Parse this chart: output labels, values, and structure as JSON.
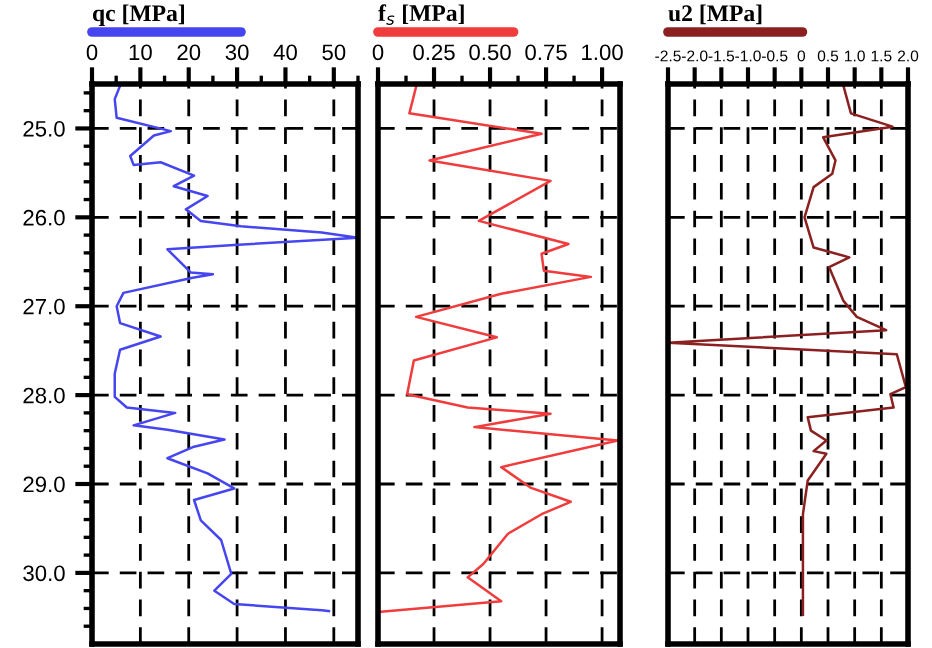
{
  "chart_data": [
    {
      "type": "line",
      "legend": "top",
      "grid": true,
      "line_style": "solid",
      "xlim": [
        0,
        55
      ],
      "ylim": [
        30.8,
        24.5
      ],
      "xticks": [
        0,
        {
          "value": 5,
          "label": null
        },
        10,
        {
          "value": 15,
          "label": null
        },
        20,
        {
          "value": 25,
          "label": null
        },
        30,
        {
          "value": 35,
          "label": null
        },
        40,
        {
          "value": 45,
          "label": null
        },
        50,
        {
          "value": 55,
          "label": null
        }
      ],
      "yticks": [
        {
          "value": 24.6,
          "label": null
        },
        {
          "value": 24.8,
          "label": null
        },
        {
          "value": 25,
          "label": "25.0"
        },
        {
          "value": 25.2,
          "label": null
        },
        {
          "value": 25.4,
          "label": null
        },
        {
          "value": 25.6,
          "label": null
        },
        {
          "value": 25.8,
          "label": null
        },
        {
          "value": 26,
          "label": "26.0"
        },
        {
          "value": 26.2,
          "label": null
        },
        {
          "value": 26.4,
          "label": null
        },
        {
          "value": 26.6,
          "label": null
        },
        {
          "value": 26.8,
          "label": null
        },
        {
          "value": 27,
          "label": "27.0"
        },
        {
          "value": 27.2,
          "label": null
        },
        {
          "value": 27.4,
          "label": null
        },
        {
          "value": 27.6,
          "label": null
        },
        {
          "value": 27.8,
          "label": null
        },
        {
          "value": 28,
          "label": "28.0"
        },
        {
          "value": 28.2,
          "label": null
        },
        {
          "value": 28.4,
          "label": null
        },
        {
          "value": 28.6,
          "label": null
        },
        {
          "value": 28.8,
          "label": null
        },
        {
          "value": 29,
          "label": "29.0"
        },
        {
          "value": 29.2,
          "label": null
        },
        {
          "value": 29.4,
          "label": null
        },
        {
          "value": 29.6,
          "label": null
        },
        {
          "value": 29.8,
          "label": null
        },
        {
          "value": 30,
          "label": "30.0"
        },
        {
          "value": 30.2,
          "label": null
        },
        {
          "value": 30.4,
          "label": null
        },
        {
          "value": 30.6,
          "label": null
        }
      ],
      "series": [
        {
          "name": "qc [MPa]",
          "color": "#4646f0",
          "x": [
            5.8,
            4.7,
            5.1,
            16.3,
            12.8,
            7.9,
            8.6,
            14.2,
            21.1,
            16.9,
            23.9,
            19.4,
            22.5,
            30.8,
            47.5,
            55,
            29.4,
            15.6,
            20.4,
            25,
            20.8,
            6.5,
            5.1,
            5.8,
            14.2,
            5.8,
            4.7,
            4.7,
            7.2,
            17.2,
            8.6,
            15.6,
            27.4,
            21.1,
            15.6,
            23.9,
            29.4,
            21.1,
            22.5,
            26.7,
            28.8,
            25.3,
            29.4,
            47.5,
            49
          ],
          "values": [
            24.52,
            24.67,
            24.88,
            25.03,
            25.08,
            25.31,
            25.41,
            25.38,
            25.53,
            25.65,
            25.76,
            25.91,
            26.04,
            26.1,
            26.17,
            26.23,
            26.31,
            26.36,
            26.62,
            26.64,
            26.68,
            26.85,
            27.0,
            27.19,
            27.34,
            27.49,
            27.76,
            28.02,
            28.14,
            28.2,
            28.34,
            28.39,
            28.5,
            28.58,
            28.71,
            28.88,
            29.05,
            29.18,
            29.41,
            29.63,
            30.01,
            30.2,
            30.35,
            30.42,
            30.43
          ]
        }
      ]
    },
    {
      "type": "line",
      "legend": "top",
      "grid": true,
      "line_style": "solid",
      "tick_labels": "x",
      "xlim": [
        0,
        1.08
      ],
      "ylim": [
        30.8,
        24.5
      ],
      "xticks": [
        0,
        {
          "value": 0.125,
          "label": null
        },
        {
          "value": 0.25,
          "label": "0.25"
        },
        {
          "value": 0.375,
          "label": null
        },
        {
          "value": 0.5,
          "label": "0.50"
        },
        {
          "value": 0.625,
          "label": null
        },
        {
          "value": 0.75,
          "label": "0.75"
        },
        {
          "value": 0.875,
          "label": null
        },
        {
          "value": 1,
          "label": "1.00"
        }
      ],
      "yticks": [
        25,
        26,
        27,
        28,
        29,
        30
      ],
      "series": [
        {
          "name": "f$_{s}$ [MPa]",
          "color": "#f03c3c",
          "x": [
            0.17,
            0.14,
            0.73,
            0.23,
            0.77,
            0.45,
            0.85,
            0.73,
            0.74,
            0.95,
            0.55,
            0.17,
            0.53,
            0.16,
            0.13,
            0.4,
            0.77,
            0.43,
            1.07,
            0.55,
            0.68,
            0.86,
            0.73,
            0.58,
            0.47,
            0.4,
            0.55,
            0.0
          ],
          "values": [
            24.53,
            24.83,
            25.06,
            25.36,
            25.59,
            26.04,
            26.3,
            26.41,
            26.6,
            26.67,
            26.86,
            27.12,
            27.35,
            27.61,
            27.99,
            28.14,
            28.21,
            28.36,
            28.51,
            28.81,
            29.04,
            29.2,
            29.34,
            29.56,
            29.9,
            30.05,
            30.32,
            30.44
          ]
        }
      ]
    },
    {
      "type": "line",
      "legend": "top",
      "grid": true,
      "line_style": "solid",
      "tick_labels": "x",
      "xlim": [
        -2.5,
        2.0
      ],
      "ylim": [
        30.8,
        24.5
      ],
      "xticks": [
        {
          "value": -2.5,
          "label": "-2.5"
        },
        {
          "value": -2,
          "label": "-2.0"
        },
        {
          "value": -1.5,
          "label": "-1.5"
        },
        {
          "value": -1,
          "label": "-1.0"
        },
        {
          "value": -0.5,
          "label": "-0.5"
        },
        0,
        0.5,
        {
          "value": 1,
          "label": "1.0"
        },
        1.5,
        {
          "value": 2,
          "label": "2.0"
        }
      ],
      "yticks": [
        25,
        26,
        27,
        28,
        29,
        30
      ],
      "series": [
        {
          "name": "u2 [MPa]",
          "color": "#8b2020",
          "x": [
            0.79,
            0.93,
            1.71,
            0.41,
            0.64,
            0.58,
            0.23,
            0.06,
            0.23,
            0.9,
            0.52,
            0.79,
            1.04,
            1.59,
            -2.5,
            1.79,
            1.96,
            1.67,
            1.73,
            0.12,
            0.18,
            0.47,
            0.23,
            0.47,
            0.12,
            0.03,
            0.03
          ],
          "values": [
            24.52,
            24.83,
            24.98,
            25.1,
            25.36,
            25.51,
            25.66,
            26.0,
            26.34,
            26.45,
            26.56,
            26.94,
            27.12,
            27.27,
            27.41,
            27.54,
            27.91,
            27.99,
            28.14,
            28.25,
            28.4,
            28.51,
            28.63,
            28.66,
            28.96,
            29.34,
            30.47
          ]
        }
      ]
    }
  ]
}
